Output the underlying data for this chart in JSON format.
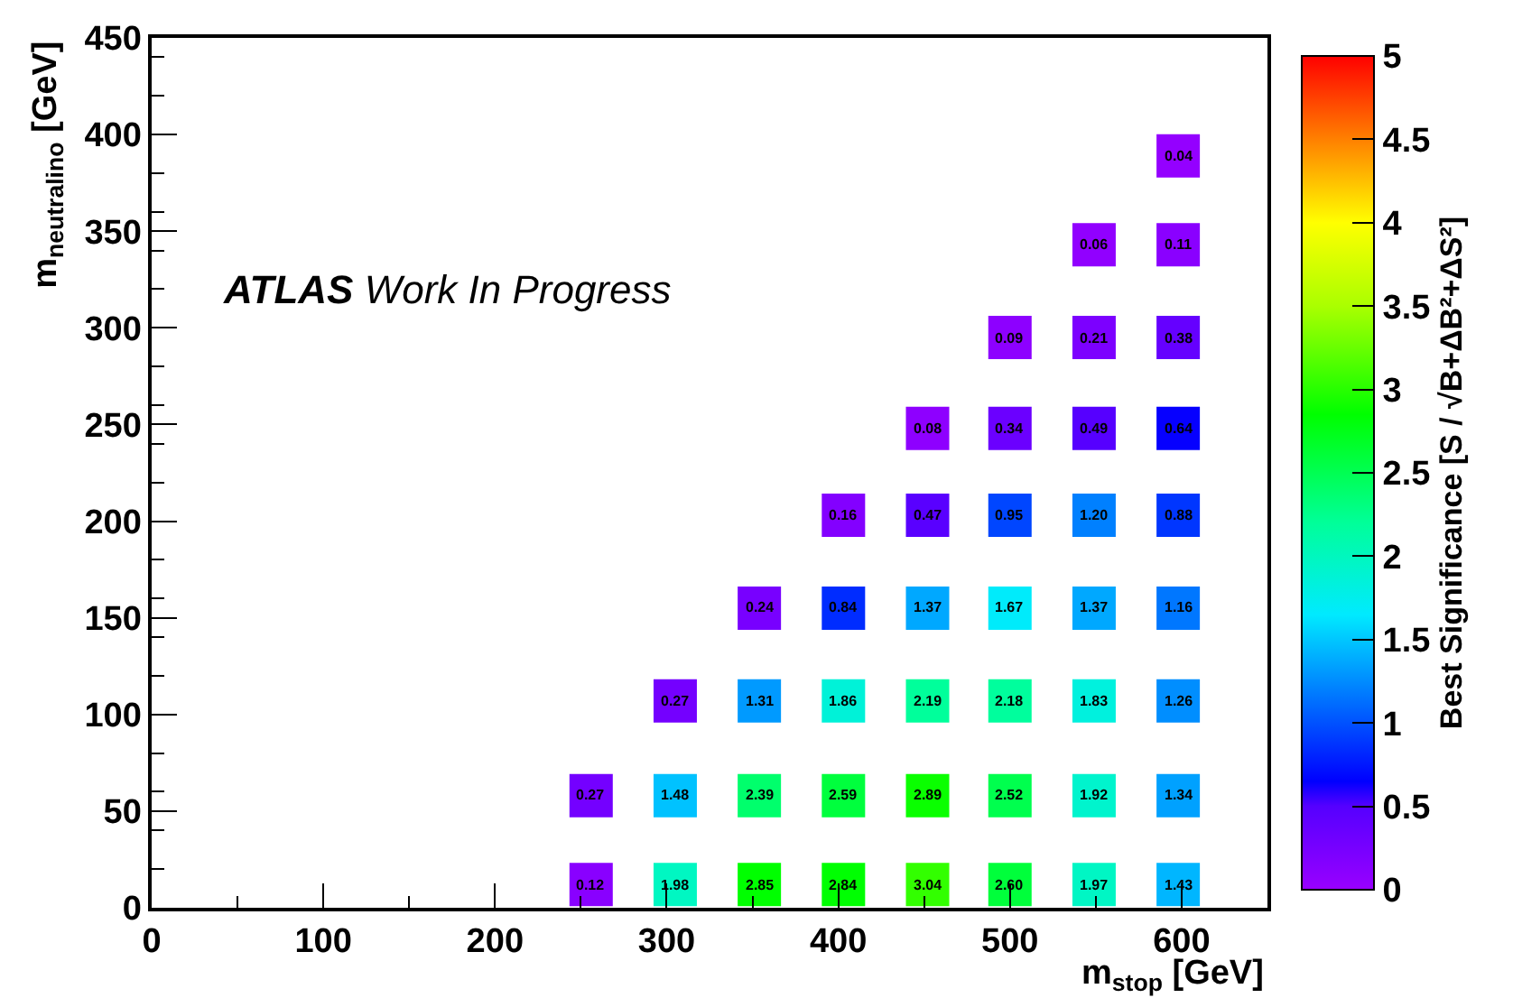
{
  "chart_data": {
    "type": "scatter",
    "xlabel": "m$_{stop}$ [GeV]",
    "ylabel": "m$_{neutralino}$ [GeV]",
    "clabel": "Best Significance [S / √B+ΔB²+ΔS²]",
    "x": [
      256,
      305,
      354,
      403,
      452,
      500,
      549,
      598,
      256,
      305,
      354,
      403,
      452,
      500,
      549,
      598,
      305,
      354,
      403,
      452,
      500,
      549,
      598,
      354,
      403,
      452,
      500,
      549,
      598,
      403,
      452,
      500,
      549,
      598,
      452,
      500,
      549,
      598,
      500,
      549,
      598,
      549,
      598,
      598
    ],
    "values": [
      12,
      12,
      12,
      12,
      12,
      12,
      12,
      12,
      58,
      58,
      58,
      58,
      58,
      58,
      58,
      58,
      107,
      107,
      107,
      107,
      107,
      107,
      107,
      155,
      155,
      155,
      155,
      155,
      155,
      203,
      203,
      203,
      203,
      203,
      248,
      248,
      248,
      248,
      295,
      295,
      295,
      343,
      343,
      389
    ],
    "cvalues": [
      0.12,
      1.98,
      2.85,
      2.84,
      3.04,
      2.6,
      1.97,
      1.43,
      0.27,
      1.48,
      2.39,
      2.59,
      2.89,
      2.52,
      1.92,
      1.34,
      0.27,
      1.31,
      1.86,
      2.19,
      2.18,
      1.83,
      1.26,
      0.24,
      0.84,
      1.37,
      1.67,
      1.37,
      1.16,
      0.16,
      0.47,
      0.95,
      1.2,
      0.88,
      0.08,
      0.34,
      0.49,
      0.64,
      0.09,
      0.21,
      0.38,
      0.06,
      0.11,
      0.04
    ],
    "annotations": [
      "ATLAS Work In Progress",
      {
        "text": "0.12",
        "x": 256,
        "y": 12
      },
      {
        "text": "1.98",
        "x": 305,
        "y": 12
      },
      {
        "text": "2.85",
        "x": 354,
        "y": 12
      },
      {
        "text": "2.84",
        "x": 403,
        "y": 12
      },
      {
        "text": "3.04",
        "x": 452,
        "y": 12
      },
      {
        "text": "2.60",
        "x": 500,
        "y": 12
      },
      {
        "text": "1.97",
        "x": 549,
        "y": 12
      },
      {
        "text": "1.43",
        "x": 598,
        "y": 12
      },
      {
        "text": "0.27",
        "x": 256,
        "y": 58
      },
      {
        "text": "1.48",
        "x": 305,
        "y": 58
      },
      {
        "text": "2.39",
        "x": 354,
        "y": 58
      },
      {
        "text": "2.59",
        "x": 403,
        "y": 58
      },
      {
        "text": "2.89",
        "x": 452,
        "y": 58
      },
      {
        "text": "2.52",
        "x": 500,
        "y": 58
      },
      {
        "text": "1.92",
        "x": 549,
        "y": 58
      },
      {
        "text": "1.34",
        "x": 598,
        "y": 58
      },
      {
        "text": "0.27",
        "x": 305,
        "y": 107
      },
      {
        "text": "1.31",
        "x": 354,
        "y": 107
      },
      {
        "text": "1.86",
        "x": 403,
        "y": 107
      },
      {
        "text": "2.19",
        "x": 452,
        "y": 107
      },
      {
        "text": "2.18",
        "x": 500,
        "y": 107
      },
      {
        "text": "1.83",
        "x": 549,
        "y": 107
      },
      {
        "text": "1.26",
        "x": 598,
        "y": 107
      },
      {
        "text": "0.24",
        "x": 354,
        "y": 155
      },
      {
        "text": "0.84",
        "x": 403,
        "y": 155
      },
      {
        "text": "1.37",
        "x": 452,
        "y": 155
      },
      {
        "text": "1.67",
        "x": 500,
        "y": 155
      },
      {
        "text": "1.37",
        "x": 549,
        "y": 155
      },
      {
        "text": "1.16",
        "x": 598,
        "y": 155
      },
      {
        "text": "0.16",
        "x": 403,
        "y": 203
      },
      {
        "text": "0.47",
        "x": 452,
        "y": 203
      },
      {
        "text": "0.95",
        "x": 500,
        "y": 203
      },
      {
        "text": "1.20",
        "x": 549,
        "y": 203
      },
      {
        "text": "0.88",
        "x": 598,
        "y": 203
      },
      {
        "text": "0.08",
        "x": 452,
        "y": 248
      },
      {
        "text": "0.34",
        "x": 500,
        "y": 248
      },
      {
        "text": "0.49",
        "x": 549,
        "y": 248
      },
      {
        "text": "0.64",
        "x": 598,
        "y": 248
      },
      {
        "text": "0.09",
        "x": 500,
        "y": 295
      },
      {
        "text": "0.21",
        "x": 549,
        "y": 295
      },
      {
        "text": "0.38",
        "x": 598,
        "y": 295
      },
      {
        "text": "0.06",
        "x": 549,
        "y": 343
      },
      {
        "text": "0.11",
        "x": 598,
        "y": 343
      },
      {
        "text": "0.04",
        "x": 598,
        "y": 389
      }
    ],
    "marker": "square",
    "xlim": [
      0,
      650
    ],
    "xticks": [
      0,
      100,
      200,
      300,
      400,
      500,
      600
    ],
    "ylim": [
      0,
      450
    ],
    "yticks": [
      0,
      50,
      100,
      150,
      200,
      250,
      300,
      350,
      400,
      450
    ],
    "clim": [
      0,
      5
    ],
    "cticks": [
      0,
      0.5,
      1,
      1.5,
      2,
      2.5,
      3,
      3.5,
      4,
      4.5,
      5
    ]
  }
}
